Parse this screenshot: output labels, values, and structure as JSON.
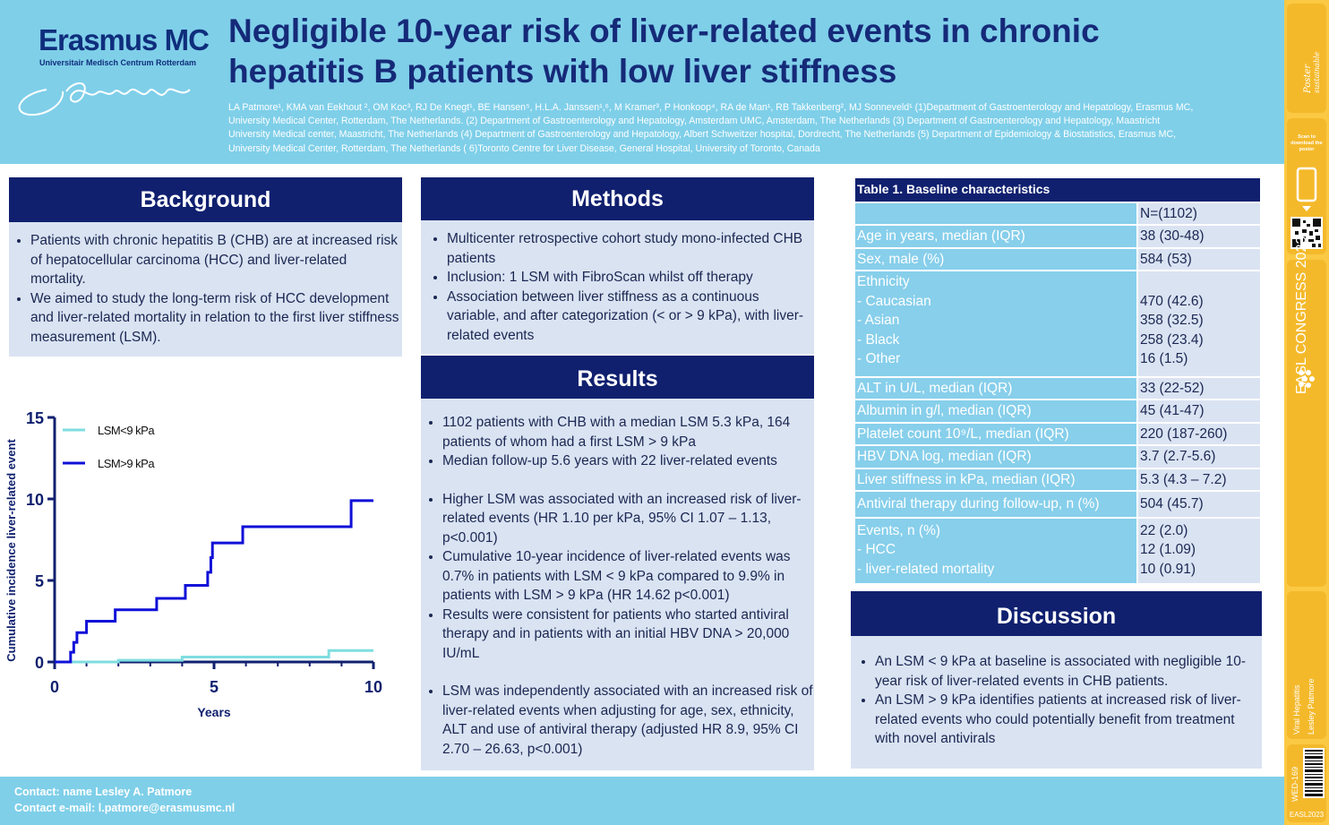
{
  "header": {
    "logo_name": "Erasmus MC",
    "logo_sub": "Universitair Medisch Centrum Rotterdam",
    "title_line1": "Negligible 10-year risk of liver-related events in chronic",
    "title_line2": "hepatitis B patients with low liver stiffness",
    "authors": "LA Patmore¹, KMA van Eekhout ², OM Koc³, RJ De Knegt¹, BE Hansen⁵, H.L.A. Janssen¹,⁶, M Kramer³, P Honkoop⁴, RA de Man¹, RB Takkenberg², MJ Sonneveld¹ (1)Department of Gastroenterology and Hepatology, Erasmus MC, University Medical Center, Rotterdam, The Netherlands.  (2) Department of Gastroenterology and Hepatology, Amsterdam UMC, Amsterdam, The Netherlands (3) Department of Gastroenterology and Hepatology, Maastricht University Medical center, Maastricht, The Netherlands  (4) Department of Gastroenterology and Hepatology, Albert Schweitzer hospital, Dordrecht, The Netherlands (5) Department of Epidemiology & Biostatistics, Erasmus MC, University Medical Center, Rotterdam, The Netherlands ( 6)Toronto Centre for Liver Disease, General Hospital, University of Toronto, Canada"
  },
  "background": {
    "heading": "Background",
    "bullets": [
      "Patients with chronic hepatitis B (CHB) are at increased risk of hepatocellular carcinoma (HCC) and liver-related mortality.",
      "We aimed to study the long-term risk of HCC development and liver-related mortality in relation to the first liver stiffness measurement (LSM)."
    ]
  },
  "methods": {
    "heading": "Methods",
    "bullets": [
      "Multicenter retrospective cohort study mono-infected CHB patients",
      "Inclusion: 1 LSM with FibroScan whilst off therapy",
      "Association between liver stiffness as a continuous variable, and after categorization (< or > 9 kPa), with liver-related events"
    ]
  },
  "results": {
    "heading": "Results",
    "bullets": [
      "1102 patients with CHB with a median LSM 5.3 kPa, 164 patients of whom had a first LSM > 9 kPa",
      "Median follow-up 5.6 years with 22 liver-related events",
      "Higher LSM was associated with an increased risk of liver-related events (HR 1.10 per kPa, 95% CI 1.07 – 1.13, p<0.001)",
      "Cumulative 10-year incidence of liver-related events was 0.7% in patients with LSM < 9 kPa compared to 9.9% in patients with LSM > 9 kPa (HR 14.62 p<0.001)",
      "Results were consistent for patients who started antiviral therapy and in patients with an initial HBV DNA > 20,000 IU/mL",
      "LSM was independently associated with an increased risk of liver-related events when adjusting for age, sex, ethnicity, ALT and use of antiviral therapy (adjusted HR 8.9, 95% CI 2.70 – 26.63, p<0.001)"
    ]
  },
  "table": {
    "title": "Table 1. Baseline characteristics",
    "header_value": "N=(1102)",
    "rows": [
      {
        "label": "Age in years, median (IQR)",
        "value": "38 (30-48)"
      },
      {
        "label": "Sex, male (%)",
        "value": "584 (53)"
      },
      {
        "label": "ALT in U/L, median (IQR)",
        "value": "33 (22-52)"
      },
      {
        "label": "Albumin in g/l, median (IQR)",
        "value": "45 (41-47)"
      },
      {
        "label": "Platelet count 10⁹/L, median (IQR)",
        "value": "220 (187-260)"
      },
      {
        "label": "HBV DNA log, median (IQR)",
        "value": "3.7 (2.7-5.6)"
      },
      {
        "label": "Liver stiffness in kPa, median (IQR)",
        "value": "5.3 (4.3 – 7.2)"
      },
      {
        "label": "Antiviral therapy during follow-up, n (%)",
        "value": "504 (45.7)"
      }
    ],
    "ethnicity": {
      "label": "Ethnicity",
      "items": [
        {
          "label": "- Caucasian",
          "value": "470 (42.6)"
        },
        {
          "label": "- Asian",
          "value": "358 (32.5)"
        },
        {
          "label": "- Black",
          "value": "258 (23.4)"
        },
        {
          "label": "- Other",
          "value": "16 (1.5)"
        }
      ]
    },
    "events": {
      "label": "Events, n (%)",
      "value": "22 (2.0)",
      "items": [
        {
          "label": "- HCC",
          "value": "12 (1.09)"
        },
        {
          "label": "- liver-related mortality",
          "value": "10 (0.91)"
        }
      ]
    }
  },
  "discussion": {
    "heading": "Discussion",
    "bullets": [
      "An LSM < 9 kPa at baseline is associated with negligible 10-year risk of liver-related events in CHB patients.",
      "An LSM > 9 kPa identifies patients at increased risk of liver-related events who could potentially benefit from treatment with novel antivirals"
    ]
  },
  "footer": {
    "contact": "Contact: name Lesley A. Patmore",
    "email": "Contact e-mail: l.patmore@erasmusmc.nl"
  },
  "sidebar": {
    "scan_text": "Scan to download the poster",
    "congress": "EASL CONGRESS 2023",
    "category": "Viral Hepatitis",
    "author": "Lesley Patmore",
    "code": "WED-169",
    "easl_year": "EASL2023"
  },
  "colors": {
    "navy": "#10206f",
    "light_blue": "#7fcfe9",
    "pale": "#dae3f2",
    "series_low": "#7fdde0",
    "series_high": "#1010d8"
  },
  "chart_data": {
    "type": "line",
    "xlabel": "Years",
    "ylabel": "Cumulative incidence liver-related event",
    "xlim": [
      0,
      10
    ],
    "ylim": [
      0,
      15
    ],
    "xticks": [
      0,
      5,
      10
    ],
    "yticks": [
      0,
      5,
      10,
      15
    ],
    "legend_position": "top-left",
    "series": [
      {
        "name": "LSM<9 kPa",
        "color": "#7fdde0",
        "step": true,
        "points": [
          [
            0,
            0
          ],
          [
            2.0,
            0.1
          ],
          [
            4.0,
            0.3
          ],
          [
            8.6,
            0.7
          ],
          [
            10,
            0.7
          ]
        ]
      },
      {
        "name": "LSM>9 kPa",
        "color": "#1010d8",
        "step": true,
        "points": [
          [
            0,
            0
          ],
          [
            0.5,
            0.6
          ],
          [
            0.6,
            1.2
          ],
          [
            0.7,
            1.8
          ],
          [
            1.0,
            2.5
          ],
          [
            1.9,
            3.2
          ],
          [
            3.2,
            3.9
          ],
          [
            4.1,
            4.7
          ],
          [
            4.8,
            5.5
          ],
          [
            4.9,
            6.4
          ],
          [
            4.95,
            7.3
          ],
          [
            5.9,
            8.3
          ],
          [
            9.3,
            9.9
          ],
          [
            10,
            9.9
          ]
        ]
      }
    ]
  }
}
